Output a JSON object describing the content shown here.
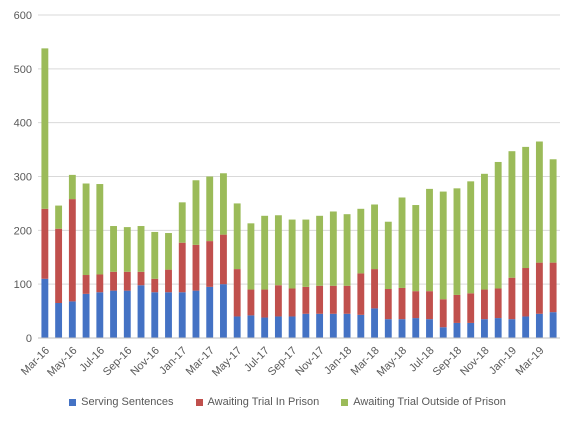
{
  "chart_data": {
    "type": "bar",
    "stacked": true,
    "title": "",
    "xlabel": "",
    "ylabel": "",
    "ylim": [
      0,
      600
    ],
    "yticks": [
      0,
      100,
      200,
      300,
      400,
      500,
      600
    ],
    "grid": true,
    "legend_position": "bottom",
    "categories": [
      "Mar-16",
      "Apr-16",
      "May-16",
      "Jun-16",
      "Jul-16",
      "Aug-16",
      "Sep-16",
      "Oct-16",
      "Nov-16",
      "Dec-16",
      "Jan-17",
      "Feb-17",
      "Mar-17",
      "Apr-17",
      "May-17",
      "Jun-17",
      "Jul-17",
      "Aug-17",
      "Sep-17",
      "Oct-17",
      "Nov-17",
      "Dec-17",
      "Jan-18",
      "Feb-18",
      "Mar-18",
      "Apr-18",
      "May-18",
      "Jun-18",
      "Jul-18",
      "Aug-18",
      "Sep-18",
      "Oct-18",
      "Nov-18",
      "Dec-18",
      "Jan-19",
      "Feb-19",
      "Mar-19",
      "Apr-19"
    ],
    "tick_labels": [
      "Mar-16",
      "May-16",
      "Jul-16",
      "Sep-16",
      "Nov-16",
      "Jan-17",
      "Mar-17",
      "May-17",
      "Jul-17",
      "Sep-17",
      "Nov-17",
      "Jan-18",
      "Mar-18",
      "May-18",
      "Jul-18",
      "Sep-18",
      "Nov-18",
      "Jan-19",
      "Mar-19"
    ],
    "series": [
      {
        "name": "Serving Sentences",
        "color": "#4472C4",
        "values": [
          110,
          65,
          68,
          82,
          85,
          88,
          88,
          98,
          85,
          85,
          85,
          88,
          95,
          100,
          40,
          42,
          38,
          40,
          40,
          45,
          45,
          45,
          45,
          43,
          55,
          35,
          35,
          37,
          35,
          20,
          28,
          28,
          35,
          37,
          35,
          40,
          45,
          48
        ]
      },
      {
        "name": "Awaiting Trial In Prison",
        "color": "#C0504D",
        "values": [
          130,
          138,
          190,
          35,
          33,
          35,
          35,
          25,
          25,
          42,
          92,
          85,
          85,
          92,
          88,
          48,
          52,
          58,
          52,
          50,
          52,
          52,
          52,
          77,
          73,
          56,
          58,
          50,
          52,
          52,
          52,
          55,
          55,
          55,
          77,
          90,
          95,
          92
        ]
      },
      {
        "name": "Awaiting Trial Outside of Prison",
        "color": "#9BBB59",
        "values": [
          298,
          43,
          45,
          170,
          168,
          85,
          83,
          85,
          87,
          68,
          75,
          120,
          120,
          114,
          122,
          123,
          137,
          130,
          128,
          125,
          130,
          138,
          133,
          120,
          120,
          125,
          168,
          160,
          190,
          200,
          198,
          208,
          215,
          235,
          235,
          225,
          225,
          192
        ]
      }
    ]
  }
}
